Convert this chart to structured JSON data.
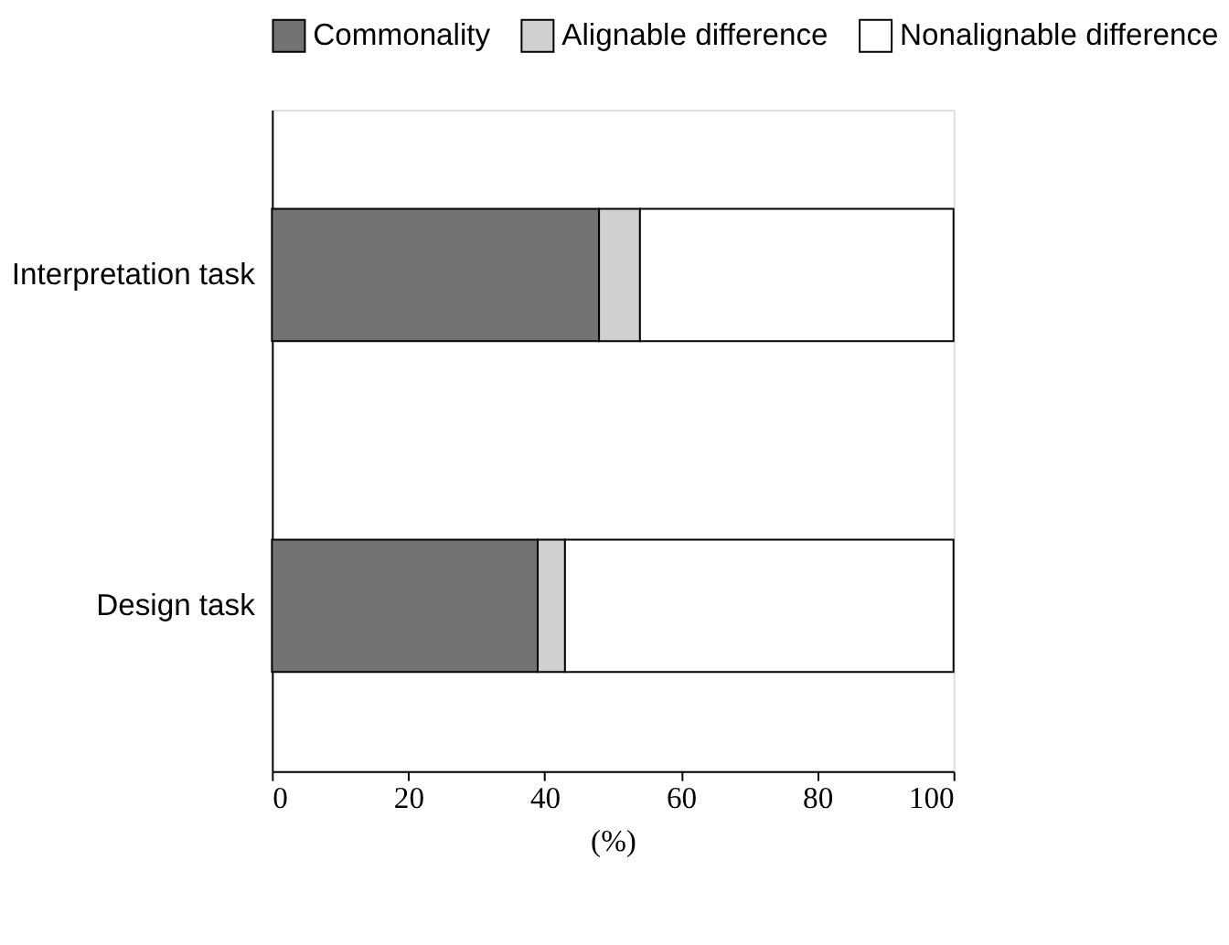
{
  "chart_data": {
    "type": "bar",
    "orientation": "horizontal",
    "stacked": true,
    "categories": [
      "Interpretation task",
      "Design task"
    ],
    "series": [
      {
        "name": "Commonality",
        "color": "#737373",
        "values": [
          48,
          39
        ]
      },
      {
        "name": "Alignable difference",
        "color": "#d0d0d0",
        "values": [
          6,
          4
        ]
      },
      {
        "name": "Nonalignable difference",
        "color": "#ffffff",
        "values": [
          46,
          57
        ]
      }
    ],
    "xlim": [
      0,
      100
    ],
    "xticks": [
      0,
      20,
      40,
      60,
      80,
      100
    ],
    "xlabel": "(%)",
    "legend": "top",
    "grid": false
  }
}
